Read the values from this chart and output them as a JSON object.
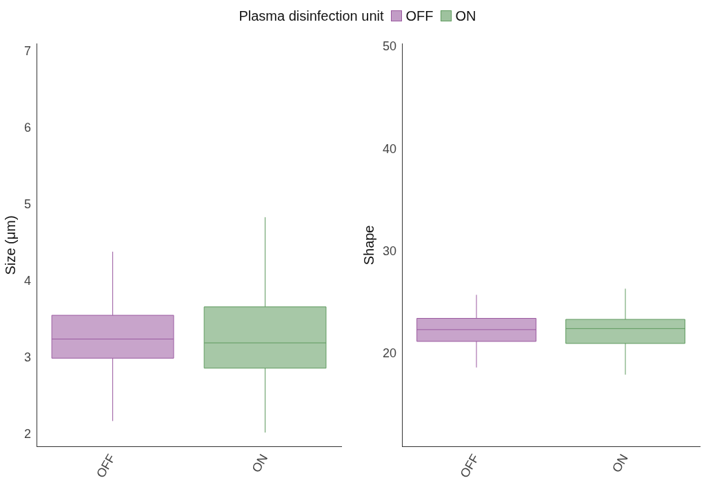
{
  "chart_data": [
    {
      "type": "box",
      "ylabel": "Size (μm)",
      "legend_title": "Plasma disinfection unit",
      "legend": "top",
      "grid": false,
      "categories": [
        "OFF",
        "ON"
      ],
      "ylim": [
        1.85,
        7.1
      ],
      "yticks": [
        2,
        3,
        4,
        5,
        6,
        7
      ],
      "series": [
        {
          "name": "OFF",
          "color": "#9a5aa0",
          "boxes": [
            {
              "low": 2.18,
              "q1": 3.0,
              "median": 3.25,
              "q3": 3.56,
              "high": 4.39
            },
            null
          ]
        },
        {
          "name": "ON",
          "color": "#5e9a5e",
          "boxes": [
            null,
            {
              "low": 2.03,
              "q1": 2.87,
              "median": 3.2,
              "q3": 3.67,
              "high": 4.84
            }
          ]
        }
      ]
    },
    {
      "type": "box",
      "ylabel": "Shape",
      "grid": false,
      "categories": [
        "OFF",
        "ON"
      ],
      "ylim": [
        11,
        50.3
      ],
      "yticks": [
        20,
        30,
        40,
        50
      ],
      "series": [
        {
          "name": "OFF",
          "color": "#9a5aa0",
          "boxes": [
            {
              "low": 18.7,
              "q1": 21.25,
              "median": 22.4,
              "q3": 23.5,
              "high": 25.8
            },
            null
          ]
        },
        {
          "name": "ON",
          "color": "#5e9a5e",
          "boxes": [
            null,
            {
              "low": 18.0,
              "q1": 21.05,
              "median": 22.5,
              "q3": 23.4,
              "high": 26.4
            }
          ]
        }
      ]
    }
  ]
}
